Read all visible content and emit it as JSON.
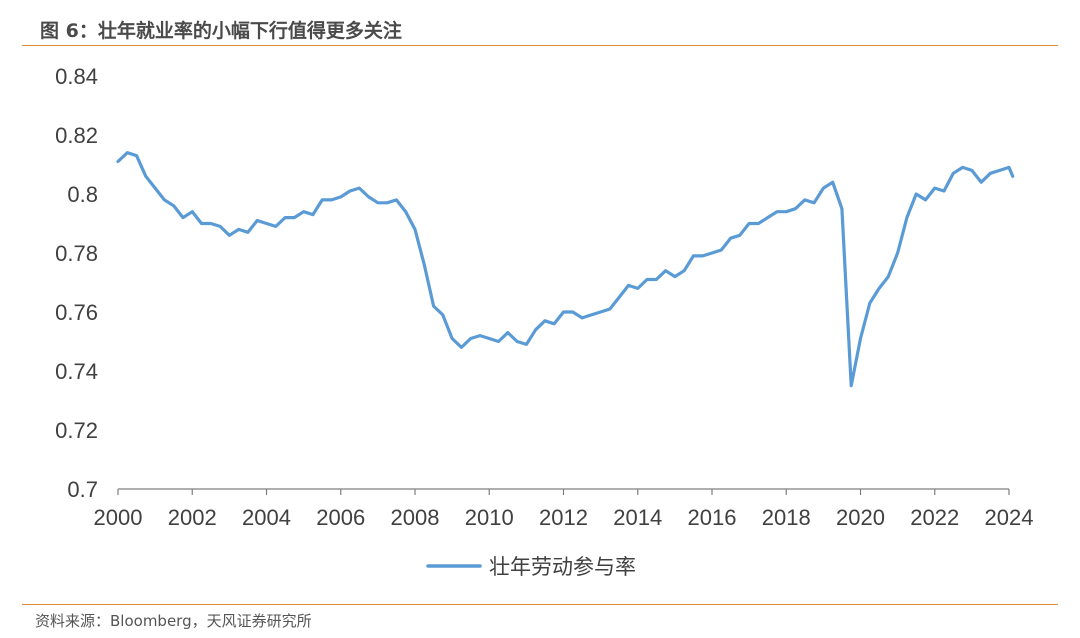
{
  "header": {
    "figure_title": "图 6：壮年就业率的小幅下行值得更多关注"
  },
  "footer": {
    "source": "资料来源：Bloomberg，天风证券研究所"
  },
  "colors": {
    "line": "#5b9bd5",
    "accent_rule": "#e08a3c",
    "axis": "#7f7f7f"
  },
  "chart_data": {
    "type": "line",
    "title": "",
    "xlabel": "",
    "ylabel": "",
    "xlim": [
      2000,
      2024
    ],
    "ylim": [
      0.7,
      0.84
    ],
    "grid": false,
    "legend_position": "bottom",
    "x_tick_labels": [
      "2000",
      "2002",
      "2004",
      "2006",
      "2008",
      "2010",
      "2012",
      "2014",
      "2016",
      "2018",
      "2020",
      "2022",
      "2024"
    ],
    "y_tick_labels": [
      "0.7",
      "0.72",
      "0.74",
      "0.76",
      "0.78",
      "0.8",
      "0.82",
      "0.84"
    ],
    "series": [
      {
        "name": "壮年劳动参与率",
        "color": "#5b9bd5",
        "x": [
          2000.0,
          2000.25,
          2000.5,
          2000.75,
          2001.0,
          2001.25,
          2001.5,
          2001.75,
          2002.0,
          2002.25,
          2002.5,
          2002.75,
          2003.0,
          2003.25,
          2003.5,
          2003.75,
          2004.0,
          2004.25,
          2004.5,
          2004.75,
          2005.0,
          2005.25,
          2005.5,
          2005.75,
          2006.0,
          2006.25,
          2006.5,
          2006.75,
          2007.0,
          2007.25,
          2007.5,
          2007.75,
          2008.0,
          2008.25,
          2008.5,
          2008.75,
          2009.0,
          2009.25,
          2009.5,
          2009.75,
          2010.0,
          2010.25,
          2010.5,
          2010.75,
          2011.0,
          2011.25,
          2011.5,
          2011.75,
          2012.0,
          2012.25,
          2012.5,
          2012.75,
          2013.0,
          2013.25,
          2013.5,
          2013.75,
          2014.0,
          2014.25,
          2014.5,
          2014.75,
          2015.0,
          2015.25,
          2015.5,
          2015.75,
          2016.0,
          2016.25,
          2016.5,
          2016.75,
          2017.0,
          2017.25,
          2017.5,
          2017.75,
          2018.0,
          2018.25,
          2018.5,
          2018.75,
          2019.0,
          2019.25,
          2019.5,
          2019.75,
          2020.0,
          2020.25,
          2020.5,
          2020.75,
          2021.0,
          2021.25,
          2021.5,
          2021.75,
          2022.0,
          2022.25,
          2022.5,
          2022.75,
          2023.0,
          2023.25,
          2023.5,
          2023.75,
          2024.0,
          2024.1
        ],
        "values": [
          0.811,
          0.814,
          0.813,
          0.806,
          0.802,
          0.798,
          0.796,
          0.792,
          0.794,
          0.79,
          0.79,
          0.789,
          0.786,
          0.788,
          0.787,
          0.791,
          0.79,
          0.789,
          0.792,
          0.792,
          0.794,
          0.793,
          0.798,
          0.798,
          0.799,
          0.801,
          0.802,
          0.799,
          0.797,
          0.797,
          0.798,
          0.794,
          0.788,
          0.776,
          0.762,
          0.759,
          0.751,
          0.748,
          0.751,
          0.752,
          0.751,
          0.75,
          0.753,
          0.75,
          0.749,
          0.754,
          0.757,
          0.756,
          0.76,
          0.76,
          0.758,
          0.759,
          0.76,
          0.761,
          0.765,
          0.769,
          0.768,
          0.771,
          0.771,
          0.774,
          0.772,
          0.774,
          0.779,
          0.779,
          0.78,
          0.781,
          0.785,
          0.786,
          0.79,
          0.79,
          0.792,
          0.794,
          0.794,
          0.795,
          0.798,
          0.797,
          0.802,
          0.804,
          0.795,
          0.735,
          0.751,
          0.763,
          0.768,
          0.772,
          0.78,
          0.792,
          0.8,
          0.798,
          0.802,
          0.801,
          0.807,
          0.809,
          0.808,
          0.804,
          0.807,
          0.808,
          0.809,
          0.806
        ]
      }
    ]
  }
}
